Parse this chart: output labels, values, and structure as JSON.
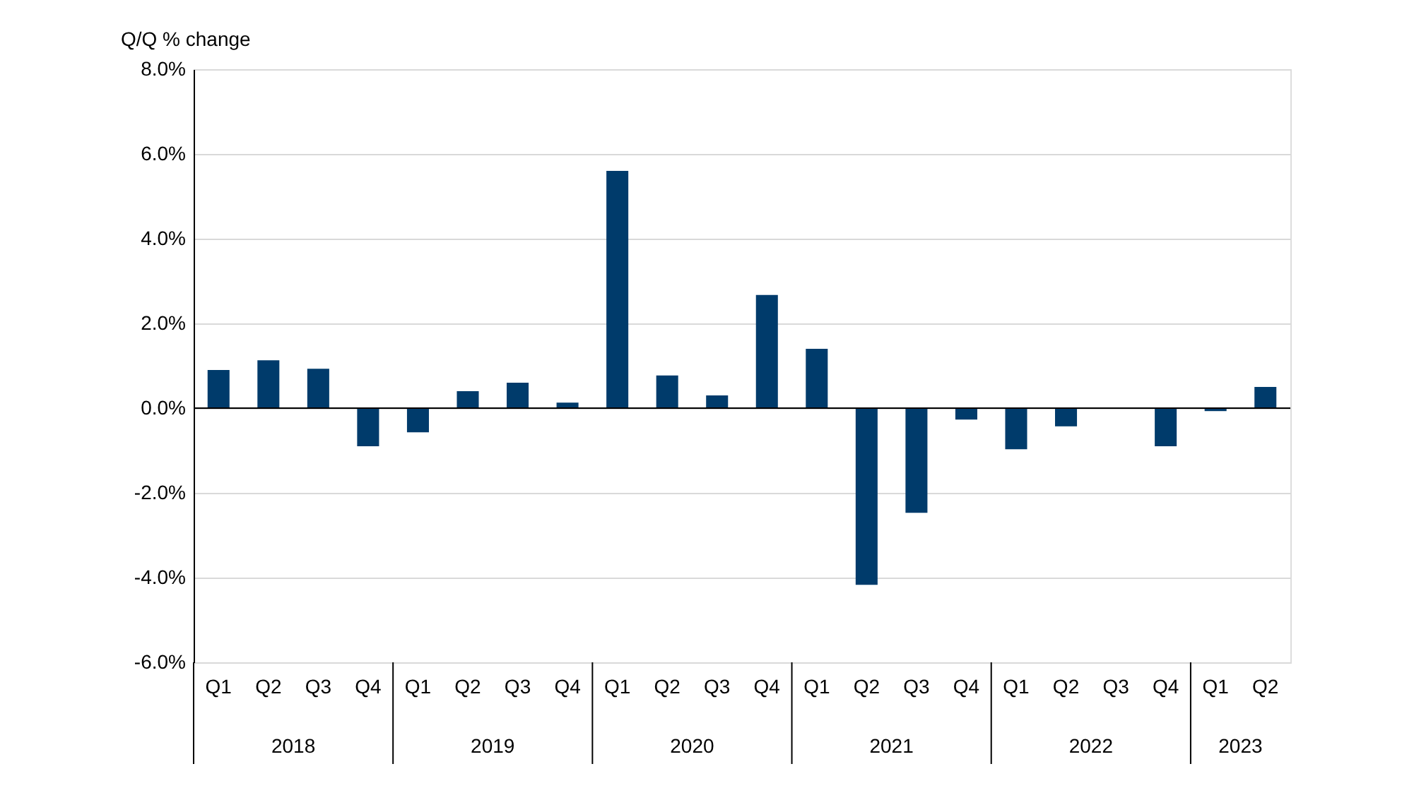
{
  "chart_data": {
    "type": "bar",
    "ylabel": "Q/Q % change",
    "categories": [
      "Q1",
      "Q2",
      "Q3",
      "Q4",
      "Q1",
      "Q2",
      "Q3",
      "Q4",
      "Q1",
      "Q2",
      "Q3",
      "Q4",
      "Q1",
      "Q2",
      "Q3",
      "Q4",
      "Q1",
      "Q2",
      "Q3",
      "Q4",
      "Q1",
      "Q2"
    ],
    "values": [
      0.9,
      1.13,
      0.93,
      -0.9,
      -0.57,
      0.4,
      0.6,
      0.13,
      5.6,
      0.77,
      0.3,
      2.67,
      1.4,
      -4.17,
      -2.47,
      -0.27,
      -0.97,
      -0.43,
      0,
      -0.9,
      -0.07,
      0.5
    ],
    "color": "#003b6b",
    "annotations": [
      "2018",
      "2019",
      "2020",
      "2021",
      "2022",
      "2023"
    ],
    "ylim": [
      -6,
      8
    ],
    "yticks": [
      {
        "value": -6,
        "label": "-6.0%"
      },
      {
        "value": -4,
        "label": "-4.0%"
      },
      {
        "value": -2,
        "label": "-2.0%"
      },
      {
        "value": 0,
        "label": "0.0%"
      },
      {
        "value": 2,
        "label": "2.0%"
      },
      {
        "value": 4,
        "label": "4.0%"
      },
      {
        "value": 6,
        "label": "6.0%"
      },
      {
        "value": 8,
        "label": "8.0%"
      }
    ],
    "grid": "y"
  }
}
